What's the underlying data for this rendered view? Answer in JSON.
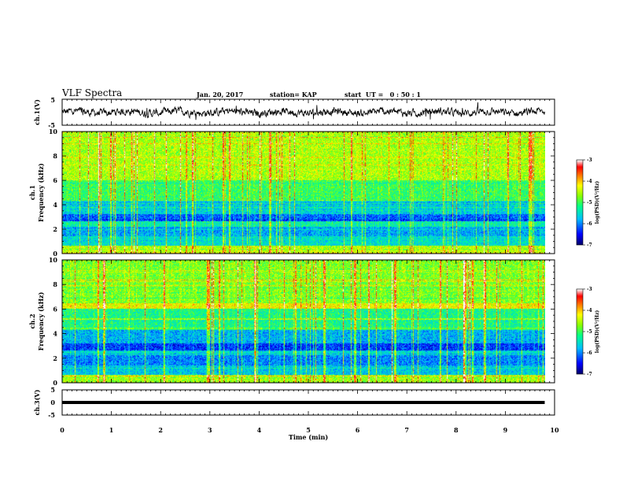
{
  "header": {
    "title": "VLF Spectra",
    "date": "Jan. 20, 2017",
    "station": "station= KAP",
    "start": "start  UT =   0 : 50 : 1"
  },
  "chart_data": [
    {
      "type": "line",
      "panel": "ch1-waveform",
      "ylabel": "ch.1(V)",
      "yticks": [
        "5",
        "-5"
      ],
      "ylim": [
        -5,
        5
      ],
      "xlim": [
        0,
        10
      ]
    },
    {
      "type": "heatmap",
      "panel": "ch1-spectrogram",
      "ylabel": "ch.1\nFrequency (kHz)",
      "ylabel_top": "ch.1",
      "ylabel_bottom": "Frequency  (kHz)",
      "yticks": [
        "0",
        "2",
        "4",
        "6",
        "8",
        "10"
      ],
      "ylim": [
        0,
        10
      ],
      "xlim": [
        0,
        10
      ],
      "colorbar": {
        "ticks": [
          "-3",
          "-4",
          "-5",
          "-6",
          "-7"
        ],
        "range": [
          -7,
          -3
        ],
        "label": "log(PSD)(V²/Hz)"
      }
    },
    {
      "type": "heatmap",
      "panel": "ch2-spectrogram",
      "ylabel_top": "ch.2",
      "ylabel_bottom": "Frequency  (kHz)",
      "yticks": [
        "0",
        "2",
        "4",
        "6",
        "8",
        "10"
      ],
      "ylim": [
        0,
        10
      ],
      "xlim": [
        0,
        10
      ],
      "colorbar": {
        "ticks": [
          "-3",
          "-4",
          "-5",
          "-6",
          "-7"
        ],
        "range": [
          -7,
          -3
        ],
        "label": "log(PSD)(V²/Hz)"
      }
    },
    {
      "type": "line",
      "panel": "ch3-waveform",
      "ylabel": "ch.3(V)",
      "yticks": [
        "5",
        "0",
        "-5"
      ],
      "ylim": [
        -5,
        5
      ],
      "xlim": [
        0,
        10
      ],
      "constant_value": 0
    }
  ],
  "xaxis": {
    "label": "Time  (min)",
    "ticks": [
      "0",
      "1",
      "2",
      "3",
      "4",
      "5",
      "6",
      "7",
      "8",
      "9",
      "10"
    ],
    "data_end": 9.8
  },
  "colors": {
    "palette": [
      "#00007f",
      "#0000ff",
      "#00bfff",
      "#00ff7f",
      "#7fff00",
      "#ffff00",
      "#ff7f00",
      "#ff0000",
      "#ffffff"
    ]
  }
}
